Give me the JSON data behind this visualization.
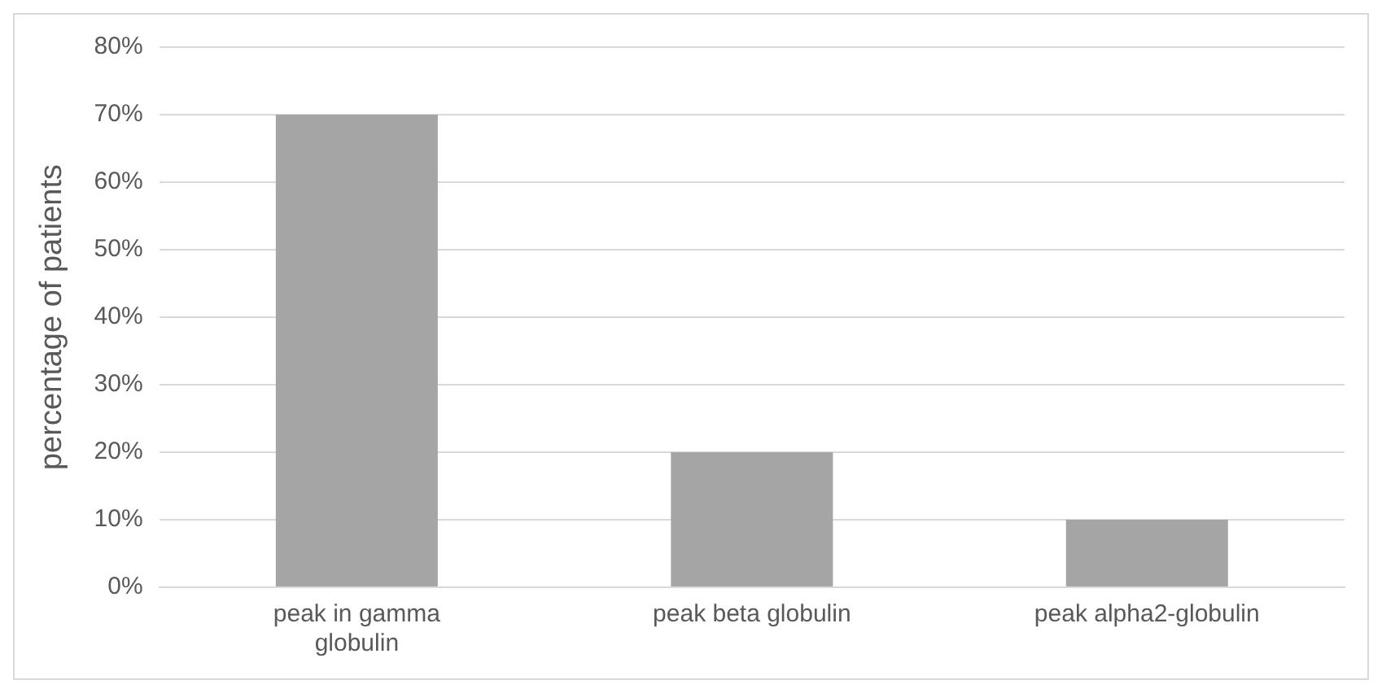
{
  "chart_data": {
    "type": "bar",
    "ylabel": "percentage of patients",
    "categories": [
      "peak in gamma globulin",
      "peak beta globulin",
      "peak alpha2-globulin"
    ],
    "values": [
      70,
      20,
      10
    ],
    "color": "#a5a5a5",
    "ylim": [
      0,
      80
    ],
    "yticks": [
      {
        "value": 0,
        "label": "0%"
      },
      {
        "value": 10,
        "label": "10%"
      },
      {
        "value": 20,
        "label": "20%"
      },
      {
        "value": 30,
        "label": "30%"
      },
      {
        "value": 40,
        "label": "40%"
      },
      {
        "value": 50,
        "label": "50%"
      },
      {
        "value": 60,
        "label": "60%"
      },
      {
        "value": 70,
        "label": "70%"
      },
      {
        "value": 80,
        "label": "80%"
      }
    ],
    "grid": "y",
    "legend": false
  }
}
